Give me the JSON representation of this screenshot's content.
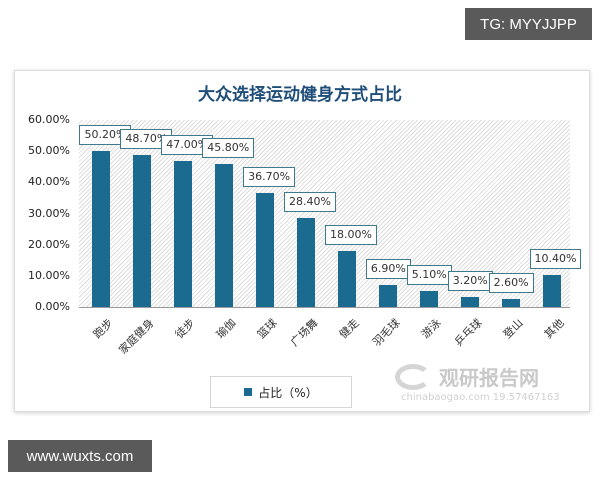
{
  "badges": {
    "top": "TG: MYYJJPP",
    "bottom": "www.wuxts.com"
  },
  "watermark": {
    "title": "观研报告网",
    "sub": "chinabaogao.com  19.57467163"
  },
  "legend": {
    "label": "占比（%）"
  },
  "colors": {
    "bar": "#1b6a8f",
    "title": "#1f4e79",
    "label_border": "#3e7a8c"
  },
  "chart_data": {
    "type": "bar",
    "title": "大众选择运动健身方式占比",
    "xlabel": "",
    "ylabel": "",
    "ylim": [
      0,
      60
    ],
    "yticks": [
      "0.00%",
      "10.00%",
      "20.00%",
      "30.00%",
      "40.00%",
      "50.00%",
      "60.00%"
    ],
    "categories": [
      "跑步",
      "家庭健身",
      "徒步",
      "瑜伽",
      "篮球",
      "广场舞",
      "健走",
      "羽毛球",
      "游泳",
      "乒乓球",
      "登山",
      "其他"
    ],
    "series": [
      {
        "name": "占比（%）",
        "values": [
          50.2,
          48.7,
          47.0,
          45.8,
          36.7,
          28.4,
          18.0,
          6.9,
          5.1,
          3.2,
          2.6,
          10.4
        ],
        "labels": [
          "50.20%",
          "48.70%",
          "47.00%",
          "45.80%",
          "36.70%",
          "28.40%",
          "18.00%",
          "6.90%",
          "5.10%",
          "3.20%",
          "2.60%",
          "10.40%"
        ]
      }
    ],
    "legend_position": "bottom",
    "grid": false
  }
}
